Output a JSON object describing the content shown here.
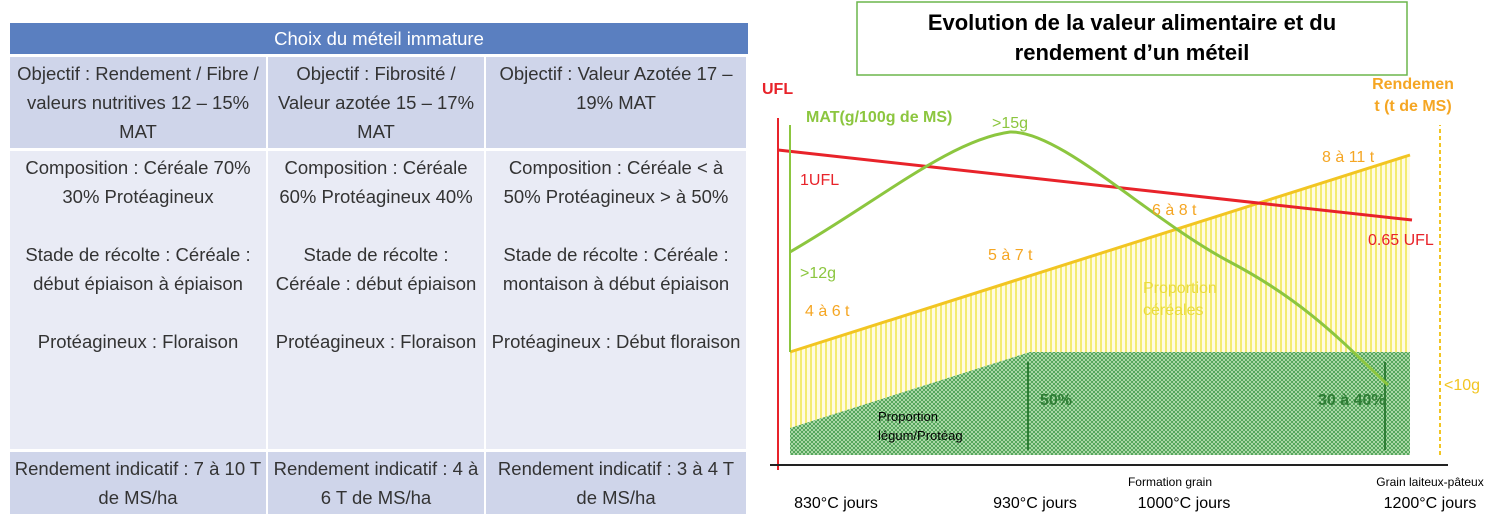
{
  "table": {
    "title": "Choix du méteil immature",
    "rows": [
      [
        [
          [
            "Objectif : Rendement / Fibre / valeurs nutritives 12 – 15% MAT"
          ]
        ],
        [
          [
            "Objectif : Fibrosité / Valeur azotée 15 – 17% MAT"
          ]
        ],
        [
          [
            "Objectif : Valeur Azotée 17 – 19% MAT"
          ]
        ]
      ],
      [
        [
          [
            "Composition : Céréale 70%",
            "30% Protéagineux"
          ],
          [
            "Stade de récolte : Céréale : début épiaison à épiaison"
          ],
          [
            "Protéagineux : Floraison"
          ]
        ],
        [
          [
            "Composition : Céréale 60% Protéagineux 40%"
          ],
          [
            "Stade de récolte : Céréale : début épiaison"
          ],
          [
            "Protéagineux : Floraison"
          ]
        ],
        [
          [
            "Composition : Céréale < à 50%  Protéagineux  > à 50%"
          ],
          [
            "Stade de récolte : Céréale : montaison à début épiaison"
          ],
          [
            "Protéagineux : Début floraison"
          ]
        ]
      ],
      [
        [
          [
            "Rendement indicatif : 7 à 10 T de MS/ha"
          ]
        ],
        [
          [
            "Rendement indicatif : 4 à 6 T de MS/ha"
          ]
        ],
        [
          [
            "Rendement indicatif : 3 à 4 T de MS/ha"
          ]
        ]
      ]
    ]
  },
  "diagram": {
    "title": [
      "Evolution de la valeur alimentaire et du",
      "rendement d’un méteil"
    ],
    "ufl_axis": "UFL",
    "mat_axis": "MAT(g/100g de MS)",
    "yield_axis": [
      "Rendemen",
      "t (t de MS)"
    ],
    "labels": {
      "mat_peak": ">15g",
      "mat_start": ">12g",
      "mat_end": "<10g",
      "ufl_start": "1UFL",
      "ufl_end": "0.65 UFL",
      "y1": "4 à 6 t",
      "y2": "5 à 7 t",
      "y3": "6 à 8 t",
      "y4": "8 à 11 t",
      "cereals": [
        "Proportion",
        "céréales"
      ],
      "legumes": [
        "Proportion",
        "légum/Protéag"
      ],
      "pct50": "50%",
      "pct30": "30 à 40%"
    },
    "stages": [
      "Formation grain",
      "Grain laiteux-pâteux"
    ],
    "x_labels": [
      "830°C jours",
      "930°C jours",
      "1000°C jours",
      "1200°C jours"
    ]
  }
}
